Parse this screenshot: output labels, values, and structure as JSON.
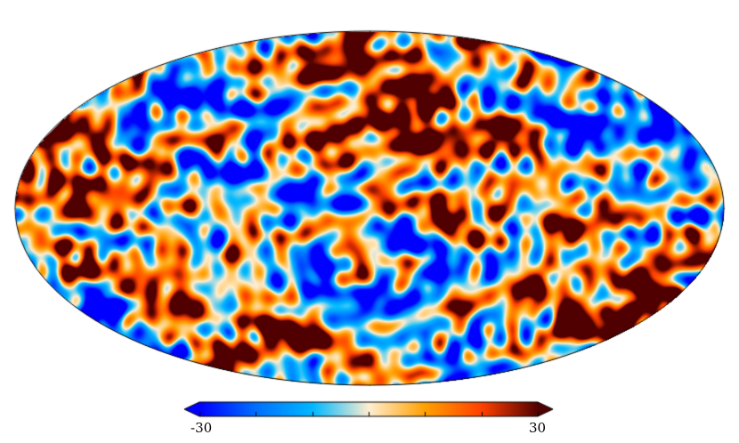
{
  "colorbar": {
    "min_label": "-30",
    "max_label": "30",
    "min_value": -30,
    "max_value": 30,
    "ticks": [
      -30,
      -20,
      -10,
      0,
      10,
      20,
      30
    ],
    "colors": [
      "#0000ff",
      "#0070ff",
      "#00b8ff",
      "#ffeed0",
      "#ffa000",
      "#ff4000",
      "#500000"
    ]
  },
  "map": {
    "projection": "mollweide",
    "background": "#ffffff"
  }
}
